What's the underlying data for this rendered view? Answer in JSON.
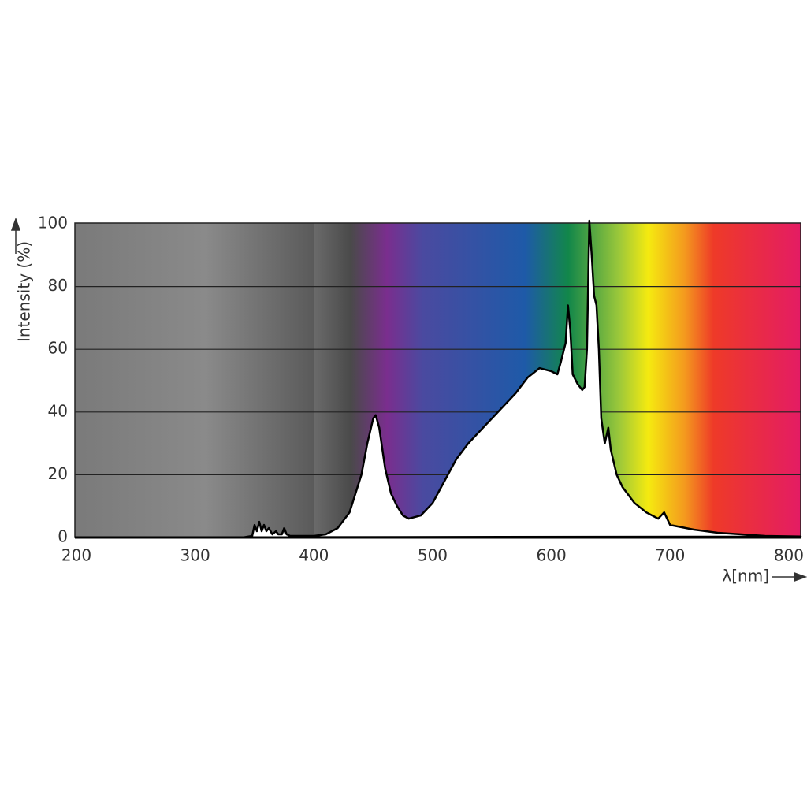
{
  "chart_data": {
    "type": "area",
    "y_label": "Intensity (%)",
    "x_label": "λ[nm]",
    "xlim": [
      200,
      810
    ],
    "xticks": [
      200,
      300,
      400,
      500,
      600,
      700,
      800
    ],
    "ylim": [
      0,
      100
    ],
    "yticks": [
      0,
      20,
      40,
      60,
      80,
      100
    ],
    "grid": true,
    "x": [
      200,
      340,
      348,
      350,
      352,
      354,
      356,
      358,
      360,
      362,
      365,
      368,
      370,
      373,
      375,
      377,
      380,
      400,
      410,
      420,
      430,
      440,
      445,
      450,
      452,
      455,
      460,
      465,
      470,
      475,
      480,
      490,
      500,
      510,
      520,
      530,
      540,
      550,
      560,
      570,
      580,
      590,
      600,
      605,
      608,
      612,
      614,
      616,
      618,
      622,
      626,
      628,
      630,
      632,
      634,
      636,
      638,
      640,
      642,
      645,
      648,
      650,
      655,
      660,
      670,
      680,
      690,
      695,
      700,
      720,
      740,
      760,
      780,
      810
    ],
    "series": [
      {
        "name": "Intensity",
        "color": "#000000",
        "values": [
          0,
          0,
          0.5,
          4,
          2,
          5,
          2,
          4,
          2,
          3,
          1,
          2,
          1,
          1,
          3,
          1,
          0.5,
          0.5,
          1,
          3,
          8,
          20,
          30,
          38,
          39,
          35,
          22,
          14,
          10,
          7,
          6,
          7,
          11,
          18,
          25,
          30,
          34,
          38,
          42,
          46,
          51,
          54,
          53,
          52,
          56,
          62,
          74,
          66,
          52,
          49,
          47,
          48,
          60,
          101,
          90,
          77,
          74,
          60,
          38,
          30,
          35,
          28,
          20,
          16,
          11,
          8,
          6,
          8,
          4,
          2.5,
          1.5,
          1,
          0.5,
          0.3
        ]
      }
    ]
  }
}
